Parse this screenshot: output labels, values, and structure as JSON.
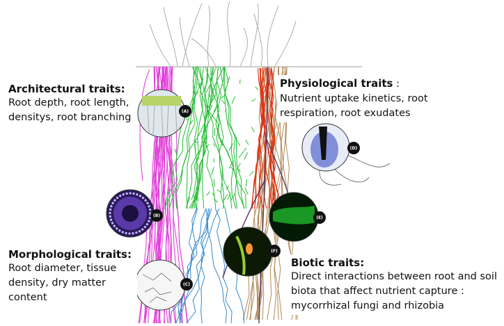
{
  "labels": {
    "architectural": {
      "title": "Architectural traits:",
      "body": "Root depth, root length, densitys, root branching"
    },
    "physiological": {
      "title": "Physiological traits",
      "suffix": " :",
      "body": "Nutrient uptake kinetics, root respiration, root exudates"
    },
    "morphological": {
      "title": "Morphological traits:",
      "body": "Root diameter, tissue density, dry matter content"
    },
    "biotic": {
      "title": "Biotic traits:",
      "body": "Direct interactions between root and soil biota that affect nutrient capture : mycorrhizal fungi and rhizobia"
    }
  },
  "panels": [
    "(A)",
    "(B)",
    "(C)",
    "(D)",
    "(E)",
    "(F)"
  ],
  "colors": {
    "architectural_roots": "#e040d8",
    "physiological_roots": "#e03010",
    "green_roots": "#22bb33",
    "brown_roots": "#b08855",
    "blue_roots": "#3388cc",
    "dark_roots": "#5a3a66"
  }
}
